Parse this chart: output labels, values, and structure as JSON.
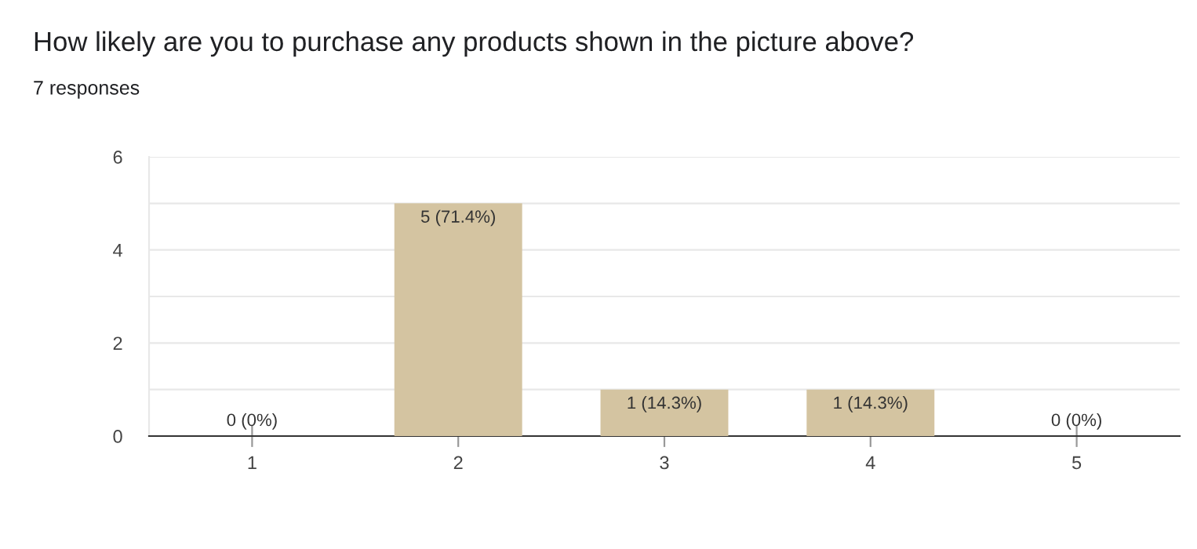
{
  "chart_data": {
    "type": "bar",
    "title": "How likely are you to purchase any products shown in the picture above?",
    "subtitle": "7 responses",
    "categories": [
      "1",
      "2",
      "3",
      "4",
      "5"
    ],
    "values": [
      0,
      5,
      1,
      1,
      0
    ],
    "value_labels": [
      "0 (0%)",
      "5 (71.4%)",
      "1 (14.3%)",
      "1 (14.3%)",
      "0 (0%)"
    ],
    "color": "#d4c4a1",
    "ylim": [
      0,
      6
    ],
    "yticks": [
      0,
      {
        "value": 1,
        "label": null
      },
      2,
      {
        "value": 3,
        "label": null
      },
      4,
      {
        "value": 5,
        "label": null
      },
      6
    ],
    "grid": "y"
  }
}
